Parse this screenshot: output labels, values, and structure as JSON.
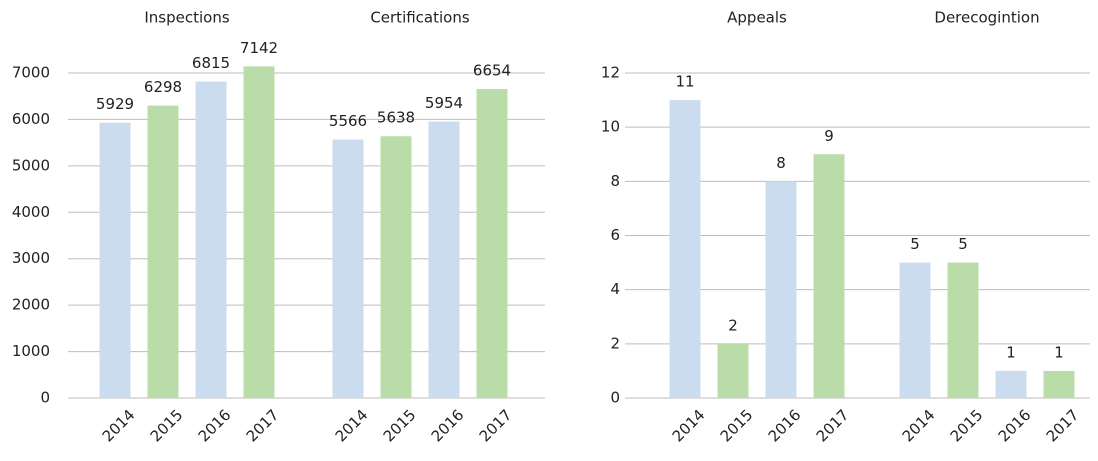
{
  "chart_data": [
    {
      "type": "bar",
      "groups": [
        {
          "name": "Inspections",
          "categories": [
            "2014",
            "2015",
            "2016",
            "2017"
          ],
          "values": [
            5929,
            6298,
            6815,
            7142
          ]
        },
        {
          "name": "Certifications",
          "categories": [
            "2014",
            "2015",
            "2016",
            "2017"
          ],
          "values": [
            5566,
            5638,
            5954,
            6654
          ]
        }
      ],
      "colors": [
        "#cadcee",
        "#badca9"
      ],
      "ylim": [
        0,
        7000
      ],
      "yticks": [
        0,
        1000,
        2000,
        3000,
        4000,
        5000,
        6000,
        7000
      ],
      "grid": true
    },
    {
      "type": "bar",
      "groups": [
        {
          "name": "Appeals",
          "categories": [
            "2014",
            "2015",
            "2016",
            "2017"
          ],
          "values": [
            11,
            2,
            8,
            9
          ]
        },
        {
          "name": "Derecogintion",
          "categories": [
            "2014",
            "2015",
            "2016",
            "2017"
          ],
          "values": [
            5,
            5,
            1,
            1
          ]
        }
      ],
      "colors": [
        "#cadcee",
        "#badca9"
      ],
      "ylim": [
        0,
        12
      ],
      "yticks": [
        0,
        2,
        4,
        6,
        8,
        10,
        12
      ],
      "grid": true
    }
  ]
}
